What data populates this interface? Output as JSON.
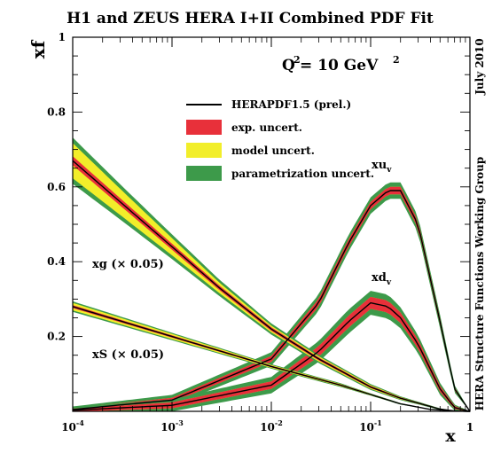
{
  "chart_data": {
    "type": "line",
    "title": "H1 and ZEUS HERA I+II Combined PDF Fit",
    "scale_label": "Q",
    "scale_exponent": "2",
    "scale_value": " = 10 GeV",
    "scale_value_exponent": "2",
    "xlabel": "x",
    "ylabel": "xf",
    "x_scale": "log",
    "xlim": [
      0.0001,
      1
    ],
    "ylim": [
      0,
      1
    ],
    "x_ticks": [
      {
        "base": "10",
        "exp": "-4",
        "value": 0.0001
      },
      {
        "base": "10",
        "exp": "-3",
        "value": 0.001
      },
      {
        "base": "10",
        "exp": "-2",
        "value": 0.01
      },
      {
        "base": "10",
        "exp": "-1",
        "value": 0.1
      },
      {
        "base": "1",
        "exp": "",
        "value": 1
      }
    ],
    "y_ticks": [
      "0.2",
      "0.4",
      "0.6",
      "0.8",
      "1"
    ],
    "y_tick_values": [
      0.2,
      0.4,
      0.6,
      0.8,
      1.0
    ],
    "side_label_top": "July 2010",
    "side_label_bottom": "HERA Structure Functions Working Group",
    "legend": {
      "position": "upper-center",
      "entries": [
        {
          "label": "HERAPDF1.5 (prel.)",
          "kind": "line",
          "color": "#000000"
        },
        {
          "label": "exp. uncert.",
          "kind": "box",
          "color": "#e8303a"
        },
        {
          "label": "model uncert.",
          "kind": "box",
          "color": "#f2ee2a"
        },
        {
          "label": "parametrization uncert.",
          "kind": "box",
          "color": "#3d9a4a"
        }
      ]
    },
    "annotations": [
      {
        "series": "xuv",
        "text": "xu",
        "sub": "v"
      },
      {
        "series": "xdv",
        "text": "xd",
        "sub": "v"
      },
      {
        "series": "xg",
        "text": "xg (× 0.05)"
      },
      {
        "series": "xS",
        "text": "xS (× 0.05)"
      }
    ],
    "colors": {
      "exp": "#e8303a",
      "model": "#f2ee2a",
      "param": "#3d9a4a",
      "central": "#000000"
    },
    "series": [
      {
        "id": "xuv",
        "x": [
          0.0001,
          0.001,
          0.01,
          0.03,
          0.06,
          0.1,
          0.15,
          0.2,
          0.3,
          0.5,
          0.7,
          1
        ],
        "y": [
          0.005,
          0.03,
          0.14,
          0.29,
          0.45,
          0.55,
          0.59,
          0.59,
          0.5,
          0.24,
          0.06,
          0
        ],
        "exp": [
          0.004,
          0.006,
          0.008,
          0.01,
          0.01,
          0.01,
          0.01,
          0.01,
          0.01,
          0.008,
          0.004,
          0
        ],
        "model": [
          0,
          0,
          0,
          0,
          0,
          0,
          0,
          0,
          0,
          0,
          0,
          0
        ],
        "param": [
          0.004,
          0.008,
          0.01,
          0.012,
          0.012,
          0.012,
          0.012,
          0.012,
          0.012,
          0.01,
          0.006,
          0
        ]
      },
      {
        "id": "xdv",
        "x": [
          0.0001,
          0.001,
          0.01,
          0.03,
          0.06,
          0.1,
          0.15,
          0.2,
          0.3,
          0.5,
          0.7,
          1
        ],
        "y": [
          0.003,
          0.016,
          0.07,
          0.16,
          0.24,
          0.29,
          0.28,
          0.25,
          0.18,
          0.06,
          0.01,
          0
        ],
        "exp": [
          0.004,
          0.008,
          0.01,
          0.014,
          0.016,
          0.016,
          0.016,
          0.014,
          0.012,
          0.008,
          0.004,
          0
        ],
        "model": [
          0,
          0,
          0,
          0,
          0,
          0,
          0,
          0,
          0,
          0,
          0,
          0
        ],
        "param": [
          0.004,
          0.008,
          0.012,
          0.014,
          0.016,
          0.016,
          0.016,
          0.014,
          0.012,
          0.008,
          0.004,
          0
        ]
      },
      {
        "id": "xg",
        "x": [
          0.0001,
          0.0003,
          0.001,
          0.003,
          0.01,
          0.03,
          0.1,
          0.2,
          0.5,
          0.7,
          1
        ],
        "y": [
          0.67,
          0.56,
          0.44,
          0.33,
          0.22,
          0.14,
          0.065,
          0.035,
          0.006,
          0.001,
          0
        ],
        "exp": [
          0.012,
          0.01,
          0.008,
          0.006,
          0.005,
          0.004,
          0.003,
          0.002,
          0.001,
          0,
          0
        ],
        "model": [
          0.035,
          0.025,
          0.015,
          0.008,
          0.004,
          0.003,
          0.002,
          0.001,
          0,
          0,
          0
        ],
        "param": [
          0.015,
          0.012,
          0.01,
          0.008,
          0.006,
          0.004,
          0.003,
          0.002,
          0.001,
          0,
          0
        ]
      },
      {
        "id": "xS",
        "x": [
          0.0001,
          0.001,
          0.01,
          0.05,
          0.1,
          0.2,
          0.4,
          0.7,
          1
        ],
        "y": [
          0.28,
          0.2,
          0.12,
          0.07,
          0.045,
          0.02,
          0.005,
          0.001,
          0
        ],
        "exp": [
          0.004,
          0.003,
          0.002,
          0.002,
          0.001,
          0.001,
          0,
          0,
          0
        ],
        "model": [
          0.006,
          0.004,
          0.002,
          0.001,
          0.001,
          0,
          0,
          0,
          0
        ],
        "param": [
          0.004,
          0.003,
          0.002,
          0.002,
          0.001,
          0.001,
          0,
          0,
          0
        ]
      }
    ]
  }
}
